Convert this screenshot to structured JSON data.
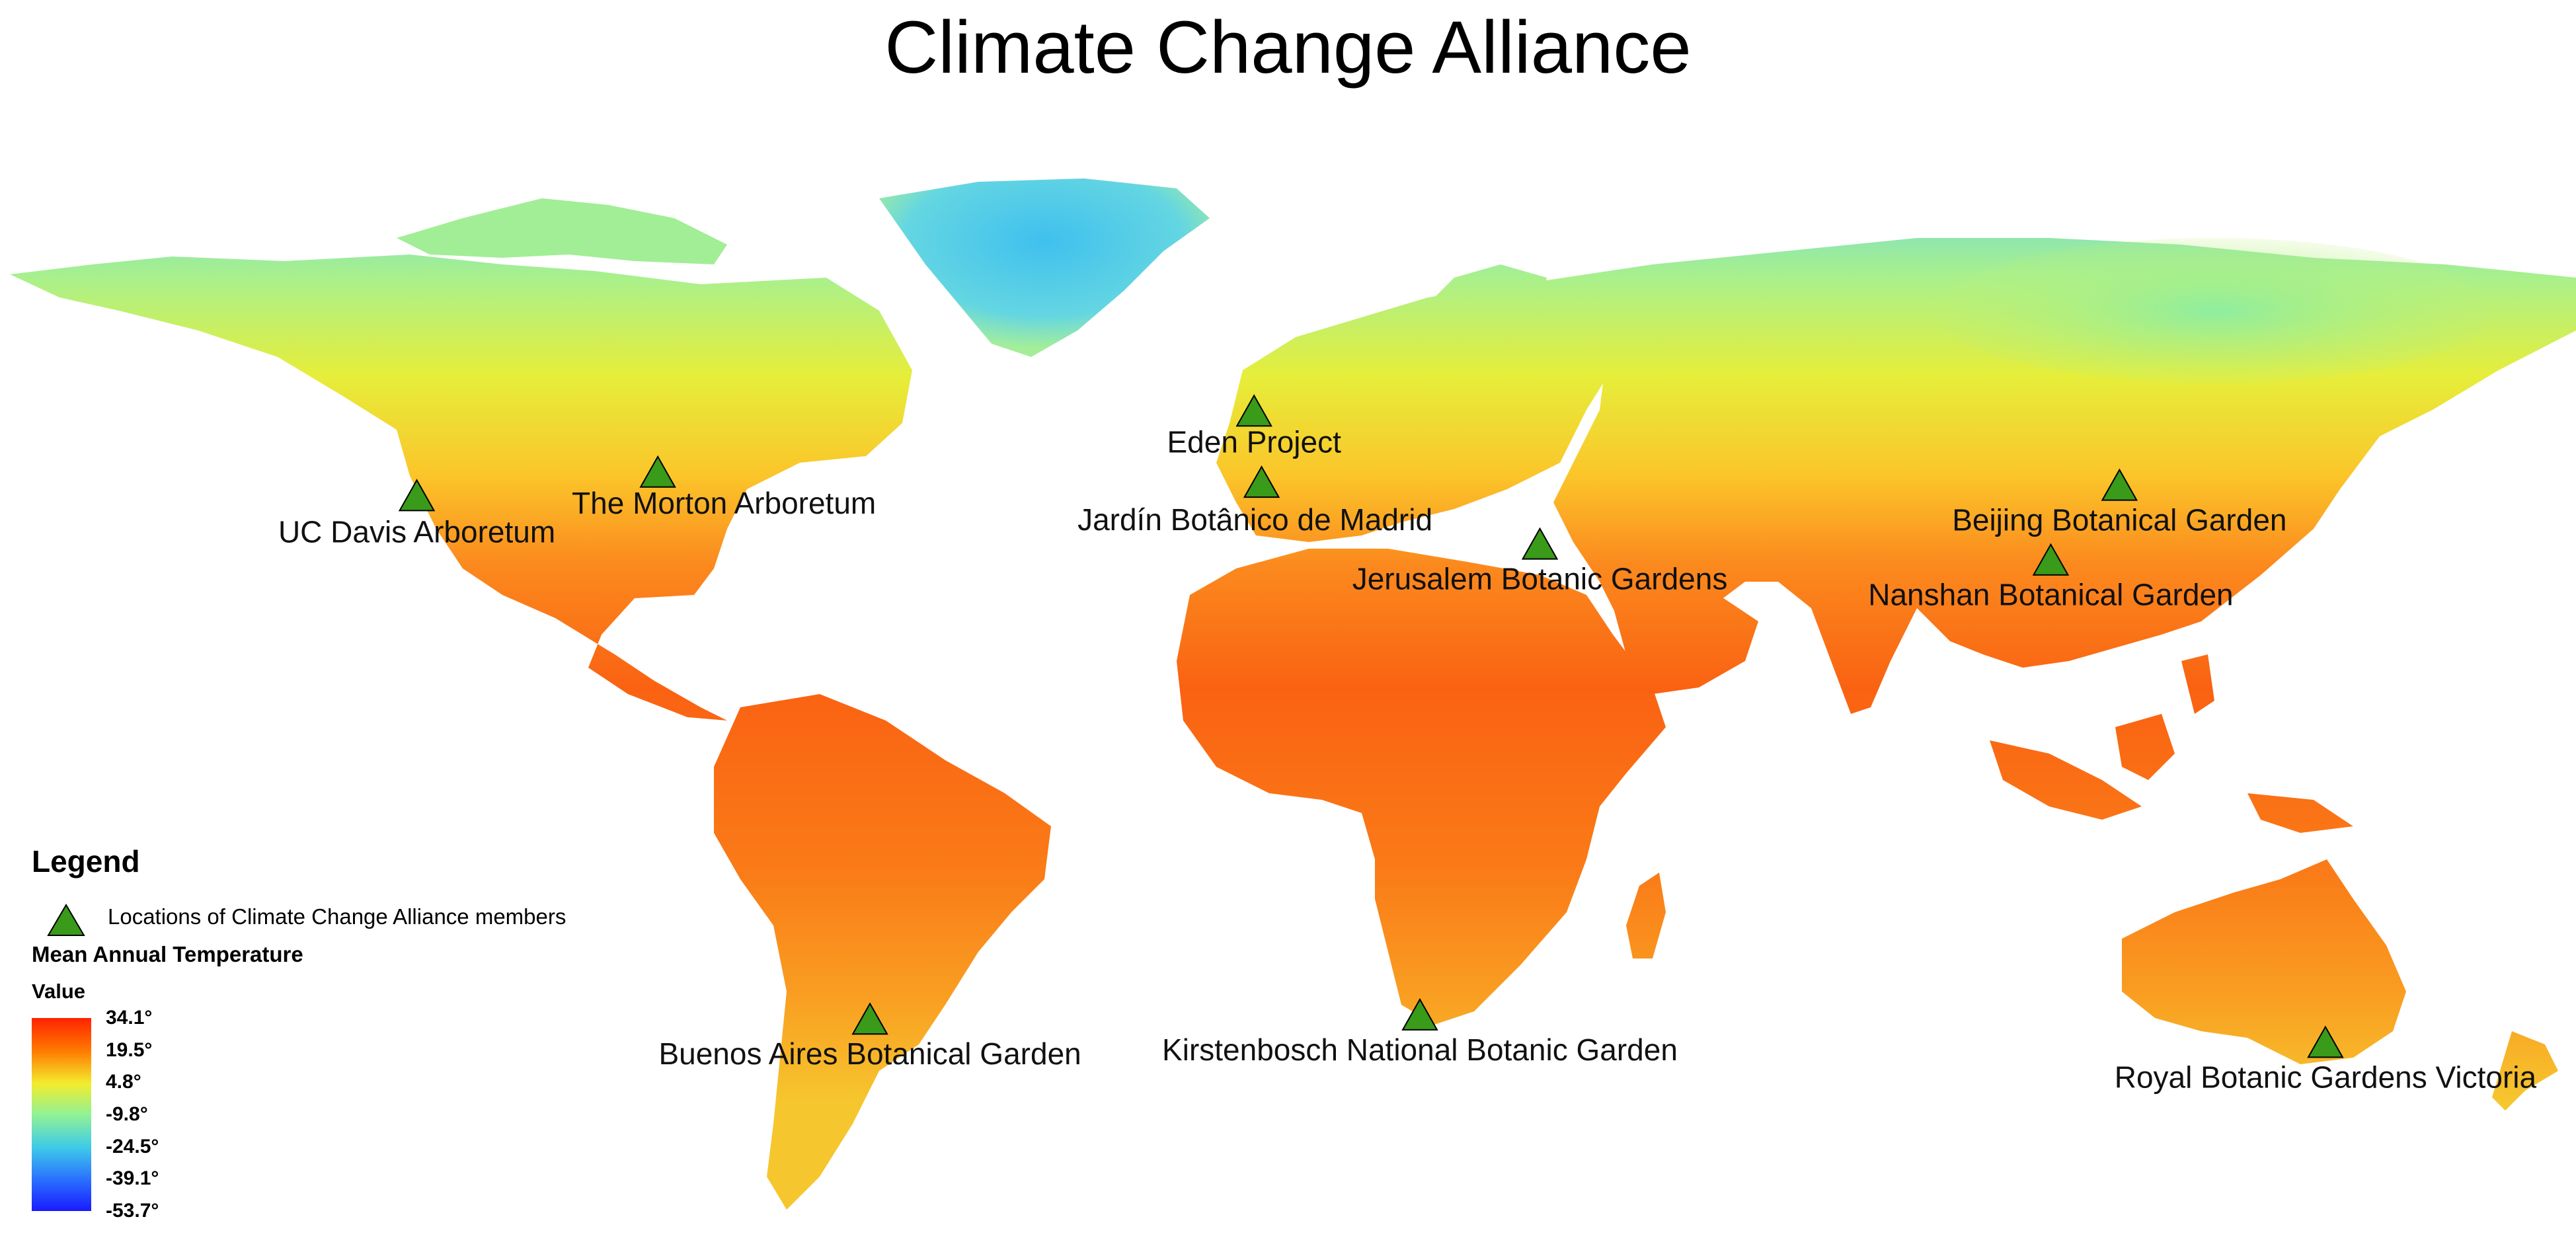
{
  "title": "Climate Change Alliance",
  "sites": [
    {
      "name": "UC Davis Arboretum",
      "lon": -121.75,
      "lat": 38.54
    },
    {
      "name": "The Morton Arboretum",
      "lon": -88.07,
      "lat": 41.82
    },
    {
      "name": "Eden Project",
      "lon": -4.74,
      "lat": 50.36
    },
    {
      "name": "Jardín Botânico de Madrid",
      "lon": -3.69,
      "lat": 40.41
    },
    {
      "name": "Jerusalem Botanic Gardens",
      "lon": 35.2,
      "lat": 31.77
    },
    {
      "name": "Beijing Botanical Garden",
      "lon": 116.2,
      "lat": 39.99
    },
    {
      "name": "Nanshan Botanical Garden",
      "lon": 106.6,
      "lat": 29.55
    },
    {
      "name": "Buenos Aires Botanical Garden",
      "lon": -58.42,
      "lat": -34.58
    },
    {
      "name": "Kirstenbosch National Botanic Garden",
      "lon": 18.43,
      "lat": -33.99
    },
    {
      "name": "Royal Botanic Gardens Victoria",
      "lon": 144.98,
      "lat": -37.83
    }
  ],
  "legend": {
    "title": "Legend",
    "marker_label": "Locations of Climate Change Alliance members",
    "marker_color": "#3a9a1a",
    "raster_title": "Mean Annual Temperature",
    "value_title": "Value",
    "ticks": [
      "34.1°",
      "19.5°",
      "4.8°",
      "-9.8°",
      "-24.5°",
      "-39.1°",
      "-53.7°"
    ],
    "ramp_colors": [
      "#ff2200",
      "#ff7a00",
      "#f3ec2d",
      "#92f294",
      "#3ecbe8",
      "#2a6fff",
      "#1a1aff"
    ]
  },
  "icons": {
    "site_marker": "triangle-marker-icon"
  }
}
